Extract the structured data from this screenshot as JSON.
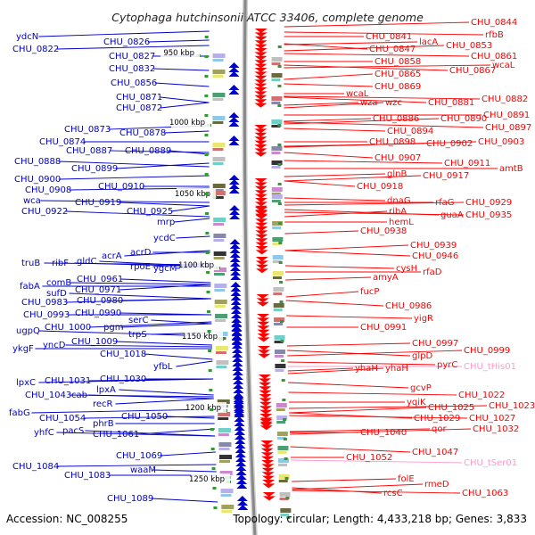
{
  "title": "Cytophaga hutchinsonii ATCC 33406, complete genome",
  "accession": "Accession: NC_008255",
  "summary": "Topology: circular; Length: 4,433,218 bp; Genes: 3,833",
  "colors": {
    "forward_strand": "#0000cc",
    "reverse_strand": "#ff0000",
    "rna": "#ff99cc",
    "backbone": "#888888",
    "tick": "#339933"
  },
  "kbp_ticks": [
    "950 kbp",
    "1000 kbp",
    "1050 kbp",
    "1100 kbp",
    "1150 kbp",
    "1200 kbp",
    "1250 kbp"
  ],
  "left_labels": [
    "ydcN",
    "CHU_0822",
    "CHU_0826",
    "CHU_0827",
    "CHU_0832",
    "CHU_0856",
    "CHU_0871",
    "CHU_0872",
    "CHU_0873",
    "CHU_0878",
    "CHU_0874",
    "CHU_0887",
    "CHU_0889",
    "CHU_0888",
    "CHU_0899",
    "CHU_0900",
    "CHU_0908",
    "CHU_0910",
    "wca",
    "CHU_0919",
    "CHU_0922",
    "CHU_0925",
    "mrp",
    "ycdC",
    "acrD",
    "truB",
    "ribF",
    "gldC",
    "acrA",
    "rpoE",
    "ygcM",
    "fabA",
    "comB",
    "CHU_0961",
    "sufD",
    "CHU_0971",
    "CHU_0983",
    "CHU_0980",
    "CHU_0993",
    "CHU_0990",
    "serC",
    "ugpQ",
    "CHU_1000",
    "pgm",
    "trpS",
    "ykgF",
    "yncD",
    "CHU_1009",
    "CHU_1018",
    "yfbL",
    "lpxC",
    "CHU_1031",
    "CHU_1030",
    "CHU_1043",
    "cab",
    "lpxA",
    "recR",
    "fabG",
    "CHU_1054",
    "phrB",
    "CHU_1050",
    "yhfC",
    "pacS",
    "CHU_1061",
    "CHU_1069",
    "CHU_1084",
    "CHU_1083",
    "waaM",
    "CHU_1089"
  ],
  "right_labels": [
    "CHU_0844",
    "rfbB",
    "CHU_0841",
    "lacA",
    "CHU_0853",
    "CHU_0847",
    "CHU_0861",
    "CHU_0858",
    "wcaL",
    "CHU_0865",
    "CHU_0867",
    "CHU_0869",
    "wcaL",
    "wza",
    "wzc",
    "CHU_0881",
    "CHU_0882",
    "CHU_0891",
    "CHU_0886",
    "CHU_0890",
    "CHU_0897",
    "CHU_0894",
    "CHU_0898",
    "CHU_0902",
    "CHU_0903",
    "CHU_0907",
    "CHU_0911",
    "amtB",
    "glnB",
    "CHU_0917",
    "CHU_0918",
    "dnaG",
    "rfaG",
    "CHU_0929",
    "ribA",
    "guaA",
    "CHU_0935",
    "hemL",
    "CHU_0938",
    "CHU_0939",
    "CHU_0946",
    "cysH",
    "rfaD",
    "amyA",
    "fucP",
    "CHU_0986",
    "yigR",
    "CHU_0991",
    "CHU_0997",
    "CHU_0999",
    "glpD",
    "pyrC",
    "CHU_tHis01",
    "yhaH",
    "yhaH",
    "gcvP",
    "CHU_1022",
    "yqiK",
    "CHU_1023",
    "CHU_1025",
    "CHU_1029",
    "CHU_1027",
    "CHU_1040",
    "qor",
    "CHU_1032",
    "CHU_1047",
    "CHU_tSer01",
    "CHU_1052",
    "folE",
    "rmeD",
    "rcsC",
    "CHU_1063"
  ]
}
